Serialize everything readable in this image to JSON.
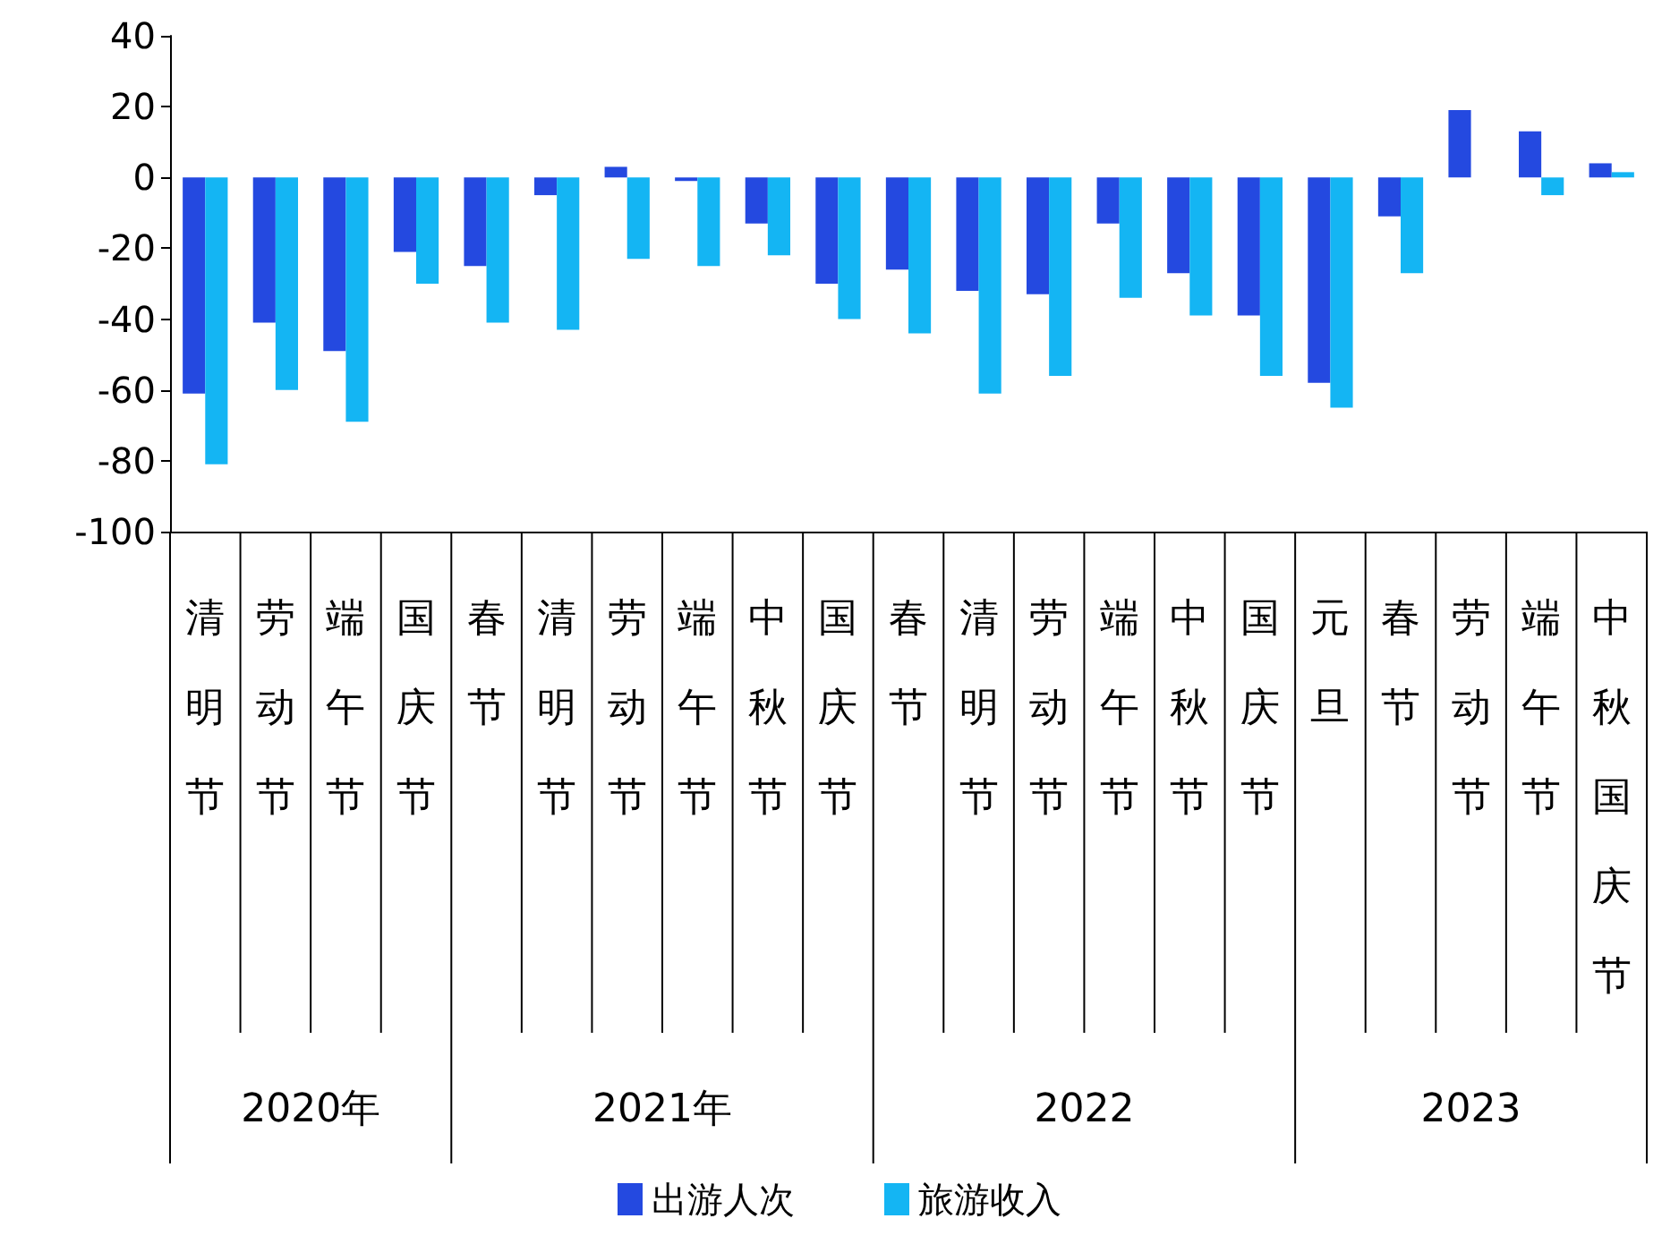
{
  "chart_data": {
    "type": "bar",
    "categories": [
      "清明节",
      "劳动节",
      "端午节",
      "国庆节",
      "春节",
      "清明节",
      "劳动节",
      "端午节",
      "中秋节",
      "国庆节",
      "春节",
      "清明节",
      "劳动节",
      "端午节",
      "中秋节",
      "国庆节",
      "元旦",
      "春节",
      "劳动节",
      "端午节",
      "中秋国庆节"
    ],
    "series": [
      {
        "name": "出游人次",
        "color": "#2449e0",
        "values": [
          -61,
          -41,
          -49,
          -21,
          -25,
          -5,
          3,
          -1,
          -13,
          -30,
          -26,
          -32,
          -33,
          -13,
          -27,
          -39,
          -58,
          -11,
          19,
          13,
          4
        ]
      },
      {
        "name": "旅游收入",
        "color": "#14b5f3",
        "values": [
          -81,
          -60,
          -69,
          -30,
          -41,
          -43,
          -23,
          -25,
          -22,
          -40,
          -44,
          -61,
          -56,
          -34,
          -39,
          -56,
          -65,
          -27,
          0,
          -5,
          1.5
        ]
      }
    ],
    "annotations": [
      "2020年",
      "2021年",
      "2022",
      "2023"
    ],
    "ylim": [
      -100,
      40
    ],
    "yticks": [
      -100,
      -80,
      -60,
      -40,
      -20,
      0,
      20,
      40
    ],
    "grid": false,
    "legend": "bottom"
  }
}
